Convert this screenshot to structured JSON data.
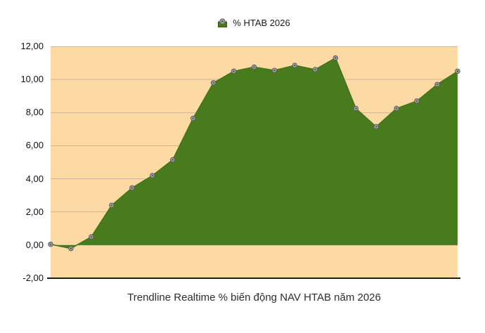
{
  "legend": {
    "label": "% HTAB 2026"
  },
  "title": "Trendline Realtime % biến động NAV HTAB năm 2026",
  "chart_data": {
    "type": "area",
    "series": [
      {
        "name": "% HTAB 2026",
        "values": [
          0.05,
          -0.2,
          0.5,
          2.4,
          3.45,
          4.2,
          5.15,
          7.65,
          9.8,
          10.5,
          10.75,
          10.55,
          10.85,
          10.6,
          11.3,
          8.25,
          7.15,
          8.25,
          8.7,
          9.7,
          10.5
        ]
      }
    ],
    "x_axis": {
      "tick_labels_visible": false,
      "point_count": 21
    },
    "y_axis": {
      "min": -2,
      "max": 12,
      "tick_step": 2,
      "tick_labels": [
        "12,00",
        "10,00",
        "8,00",
        "6,00",
        "4,00",
        "2,00",
        "0,00",
        "-2,00"
      ],
      "decimal_separator": ","
    },
    "grid": true,
    "legend_position": "top-center",
    "baseline_value": 0,
    "title": "Trendline Realtime % biến động NAV HTAB năm 2026",
    "colors": {
      "area_fill": "#487B1E",
      "line": "#447618",
      "marker_fill": "#a3a3a3",
      "marker_stroke": "#5f5f5f",
      "marker_center": "#4d4d4d",
      "plot_background": "#FDD9A3",
      "gridline": "#cdb794",
      "axis_line": "#1a1a1a",
      "text": "#111111"
    }
  }
}
